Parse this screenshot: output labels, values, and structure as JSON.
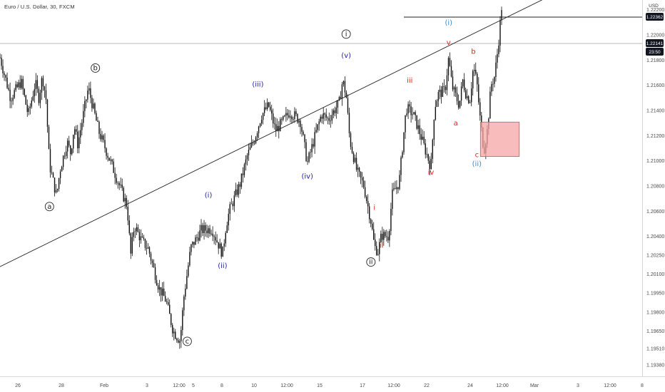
{
  "header": {
    "title": "Euro / U.S. Dollar, 30, FXCM",
    "currency": "USD"
  },
  "price_tags": {
    "upper_line": "1.22362",
    "last_price": "1.22141",
    "countdown": "23:50"
  },
  "colors": {
    "candle": "#111111",
    "red_label": "#e0211f",
    "blue_label": "#2f8bd6",
    "navy_label": "#2424a8",
    "zone_fill": "#f7a6a6",
    "zone_stroke": "#e05050"
  },
  "chart_data": {
    "type": "candlestick",
    "symbol": "EUR/USD",
    "timeframe": "30",
    "x_tick_labels": [
      "26",
      "28",
      "Feb",
      "3",
      "12:00",
      "5",
      "8",
      "10",
      "12:00",
      "15",
      "17",
      "12:00",
      "22",
      "24",
      "12:00",
      "Mar",
      "3",
      "12:00",
      "8"
    ],
    "y_tick_labels": [
      "1.22200",
      "1.22000",
      "1.21800",
      "1.21600",
      "1.21400",
      "1.21200",
      "1.21000",
      "1.20800",
      "1.20600",
      "1.20400",
      "1.20250",
      "1.20100",
      "1.19950",
      "1.19800",
      "1.19650",
      "1.19510",
      "1.19380"
    ],
    "ylim": [
      1.1938,
      1.2236
    ],
    "price_path": [
      [
        0,
        1.2182
      ],
      [
        3,
        1.215
      ],
      [
        6,
        1.2163
      ],
      [
        8,
        1.2136
      ],
      [
        10,
        1.2162
      ],
      [
        11,
        1.215
      ],
      [
        12,
        1.2167
      ],
      [
        13,
        1.215
      ],
      [
        14,
        1.2097
      ],
      [
        16,
        1.2072
      ],
      [
        17,
        1.2093
      ],
      [
        19,
        1.2115
      ],
      [
        20,
        1.2106
      ],
      [
        21,
        1.2128
      ],
      [
        22,
        1.2113
      ],
      [
        25,
        1.2158
      ],
      [
        28,
        1.2123
      ],
      [
        32,
        1.2094
      ],
      [
        34,
        1.2079
      ],
      [
        36,
        1.2064
      ],
      [
        37,
        1.2025
      ],
      [
        38,
        1.2049
      ],
      [
        40,
        1.2037
      ],
      [
        42,
        1.203
      ],
      [
        45,
        1.1999
      ],
      [
        47,
        1.1989
      ],
      [
        49,
        1.1965
      ],
      [
        51,
        1.1957
      ],
      [
        52,
        1.1991
      ],
      [
        54,
        1.2031
      ],
      [
        57,
        1.2045
      ],
      [
        60,
        1.2046
      ],
      [
        63,
        1.2026
      ],
      [
        64,
        1.2049
      ],
      [
        65,
        1.2061
      ],
      [
        68,
        1.2082
      ],
      [
        70,
        1.2104
      ],
      [
        72,
        1.2117
      ],
      [
        74,
        1.2136
      ],
      [
        76,
        1.2144
      ],
      [
        78,
        1.2124
      ],
      [
        80,
        1.2131
      ],
      [
        82,
        1.2139
      ],
      [
        85,
        1.2132
      ],
      [
        87,
        1.2098
      ],
      [
        89,
        1.2118
      ],
      [
        91,
        1.2137
      ],
      [
        93,
        1.2133
      ],
      [
        96,
        1.2146
      ],
      [
        97,
        1.2164
      ],
      [
        98,
        1.2152
      ],
      [
        99,
        1.2117
      ],
      [
        101,
        1.2092
      ],
      [
        103,
        1.208
      ],
      [
        105,
        1.2052
      ],
      [
        106,
        1.2032
      ],
      [
        107,
        1.2028
      ],
      [
        108,
        1.2041
      ],
      [
        110,
        1.204
      ],
      [
        111,
        1.2073
      ],
      [
        113,
        1.2083
      ],
      [
        114,
        1.2113
      ],
      [
        115,
        1.2142
      ],
      [
        117,
        1.2137
      ],
      [
        119,
        1.2121
      ],
      [
        120,
        1.2112
      ],
      [
        122,
        1.2095
      ],
      [
        123,
        1.2142
      ],
      [
        124,
        1.2153
      ],
      [
        126,
        1.2156
      ],
      [
        127,
        1.2182
      ],
      [
        128,
        1.2159
      ],
      [
        130,
        1.2144
      ],
      [
        131,
        1.2164
      ],
      [
        132,
        1.2152
      ],
      [
        133,
        1.2148
      ],
      [
        134,
        1.2175
      ],
      [
        135,
        1.2162
      ],
      [
        136,
        1.2131
      ],
      [
        137,
        1.2108
      ],
      [
        138,
        1.2125
      ],
      [
        139,
        1.216
      ],
      [
        140,
        1.2167
      ],
      [
        141,
        1.219
      ],
      [
        142,
        1.2222
      ]
    ],
    "path_x_range": [
      0,
      142
    ],
    "upper_line": 1.22362,
    "last_price": 1.22141,
    "trendline": {
      "from": [
        0,
        1.2016
      ],
      "to": [
        142,
        1.2212
      ]
    },
    "zone": {
      "x": [
        136,
        147
      ],
      "y": [
        1.21035,
        1.21308
      ]
    }
  },
  "annotations": [
    {
      "label": "a",
      "style": "circle",
      "x": 14,
      "y": 1.2062
    },
    {
      "label": "b",
      "style": "circle",
      "x": 27,
      "y": 1.2172
    },
    {
      "label": "c",
      "style": "circle",
      "x": 53,
      "y": 1.1955
    },
    {
      "label": "i",
      "style": "circle",
      "x": 98,
      "y": 1.2199
    },
    {
      "label": "ii",
      "style": "circle",
      "x": 105,
      "y": 1.2018
    },
    {
      "label": "(i)",
      "style": "navy",
      "x": 59,
      "y": 1.2071
    },
    {
      "label": "(ii)",
      "style": "navy",
      "x": 63,
      "y": 1.2015
    },
    {
      "label": "(iii)",
      "style": "navy",
      "x": 73,
      "y": 1.2159
    },
    {
      "label": "(iv)",
      "style": "navy",
      "x": 87,
      "y": 1.2086
    },
    {
      "label": "(v)",
      "style": "navy",
      "x": 98,
      "y": 1.2182
    },
    {
      "label": "(i)",
      "style": "blue",
      "x": 127,
      "y": 1.2208
    },
    {
      "label": "(ii)",
      "style": "blue",
      "x": 135,
      "y": 1.2096
    },
    {
      "label": "i",
      "style": "red",
      "x": 106,
      "y": 1.2061
    },
    {
      "label": "ii",
      "style": "red",
      "x": 108,
      "y": 1.2031
    },
    {
      "label": "iii",
      "style": "red",
      "x": 116,
      "y": 1.2162
    },
    {
      "label": "iv",
      "style": "red",
      "x": 122,
      "y": 1.2089
    },
    {
      "label": "v",
      "style": "red",
      "x": 127,
      "y": 1.2192
    },
    {
      "label": "a",
      "style": "red",
      "x": 129,
      "y": 1.2128
    },
    {
      "label": "b",
      "style": "red",
      "x": 134,
      "y": 1.2185
    },
    {
      "label": "c",
      "style": "red",
      "x": 135,
      "y": 1.2103
    }
  ]
}
